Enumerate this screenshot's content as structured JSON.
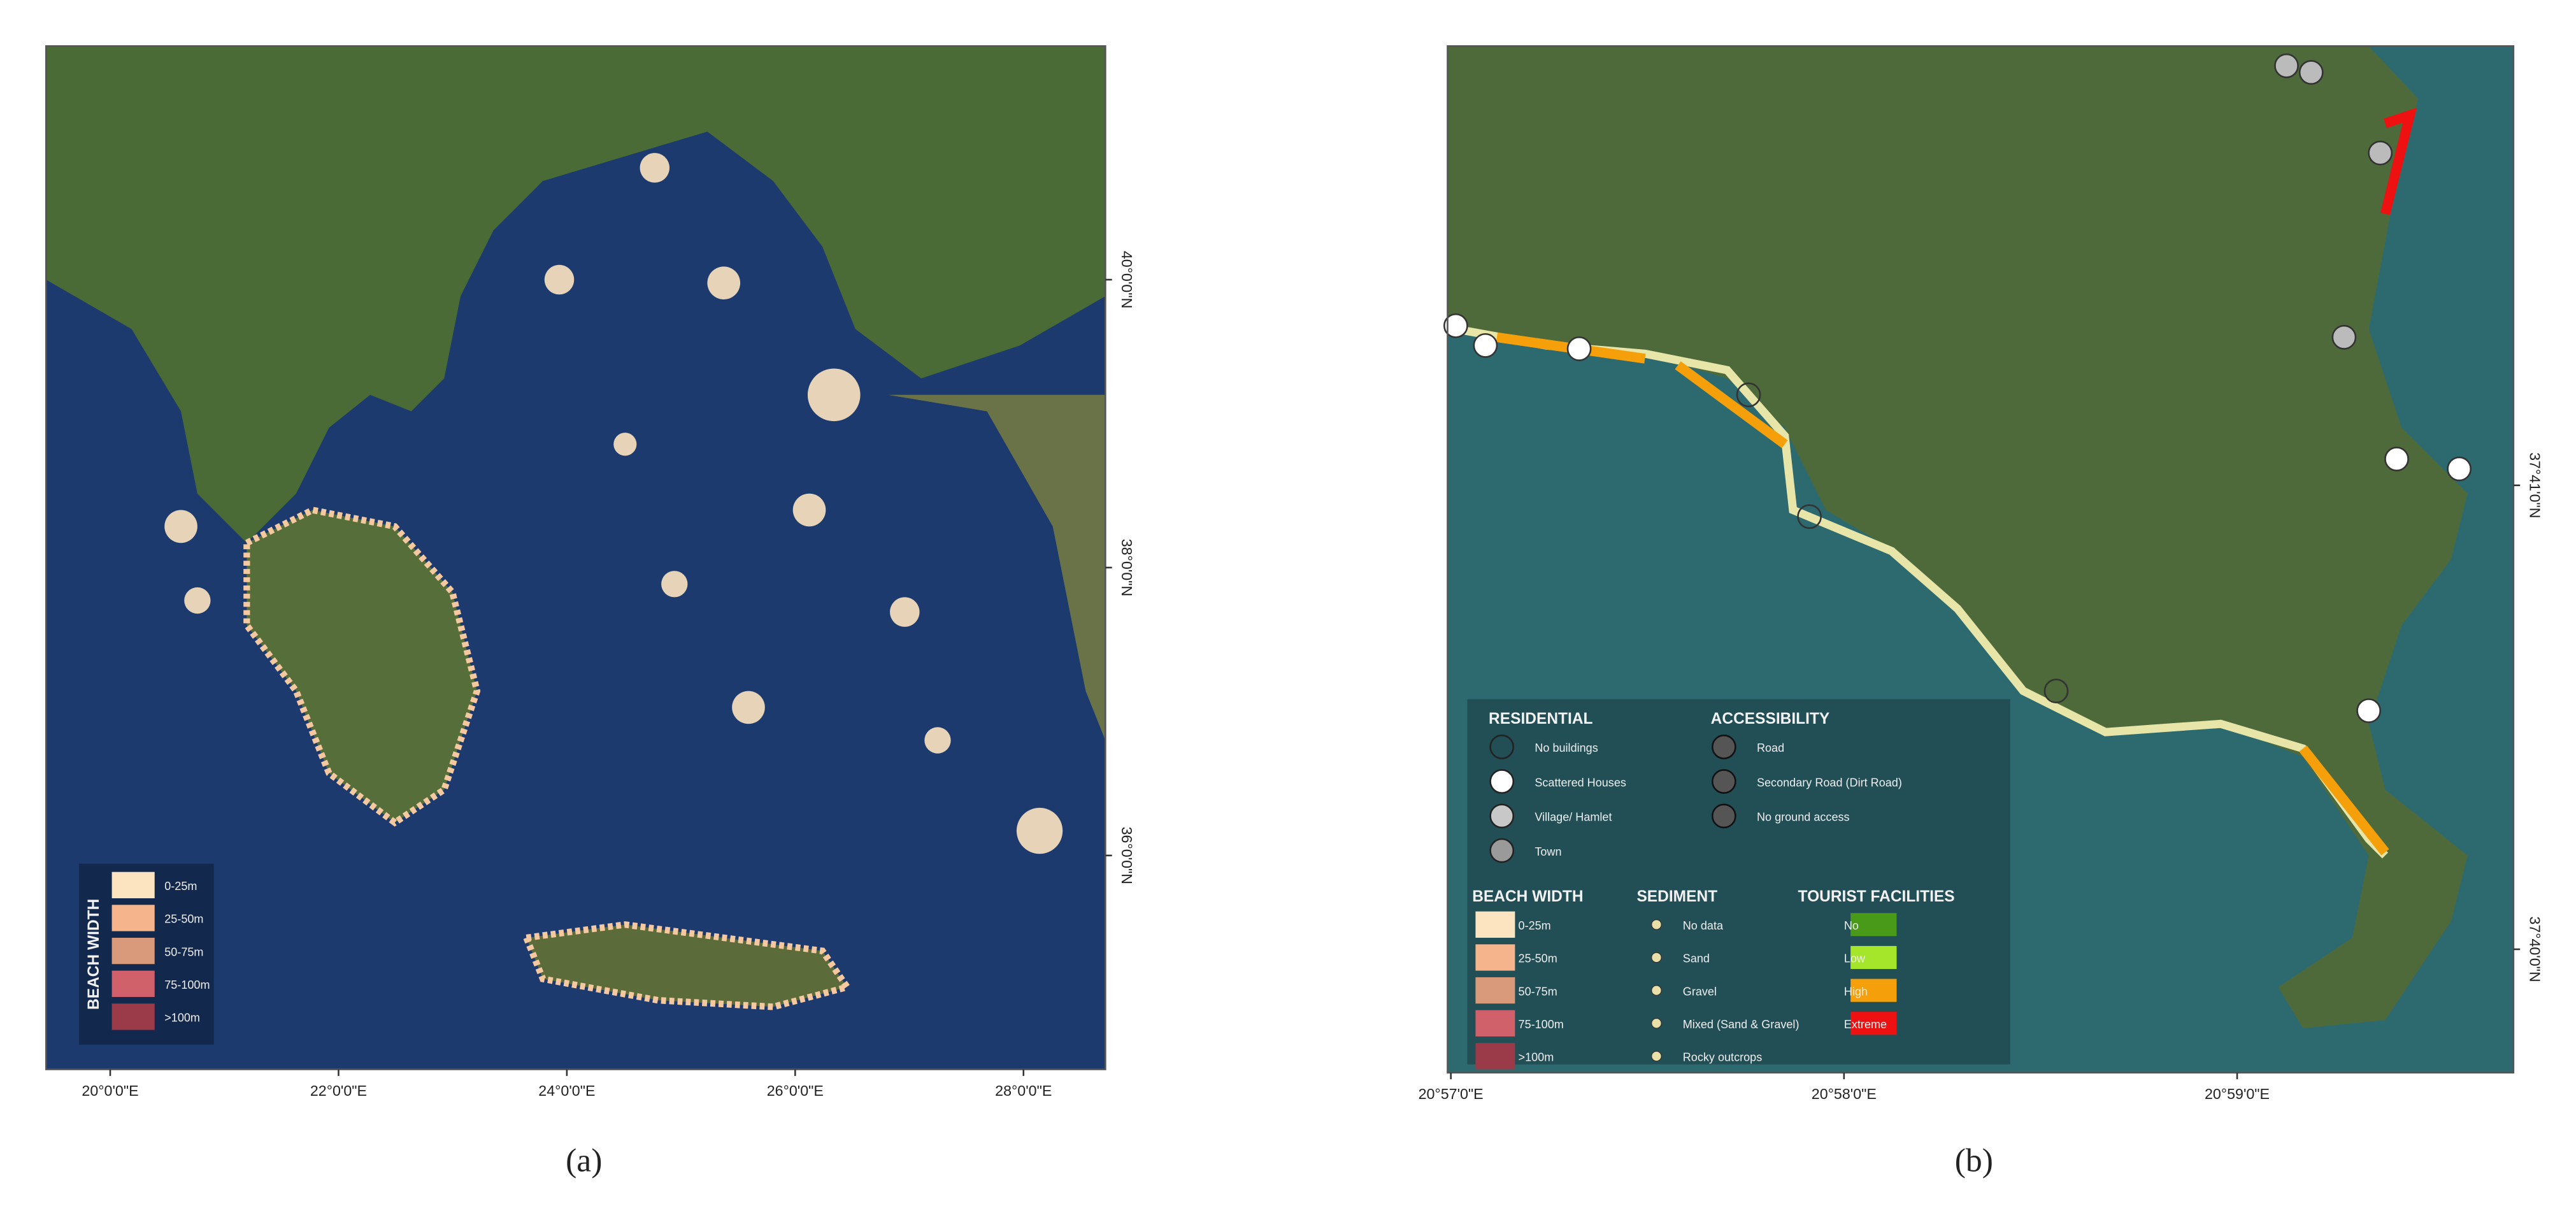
{
  "panels": [
    {
      "caption": "(a)",
      "x_labels": [
        "20°0'0\"E",
        "22°0'0\"E",
        "24°0'0\"E",
        "26°0'0\"E",
        "28°0'0\"E"
      ],
      "y_labels": [
        "40°0'0\"N",
        "38°0'0\"N",
        "36°0'0\"N"
      ],
      "legend": {
        "title": "BEACH WIDTH",
        "items": [
          {
            "label": "0-25m",
            "color": "#fde4c0"
          },
          {
            "label": "25-50m",
            "color": "#f6b48c"
          },
          {
            "label": "50-75m",
            "color": "#d99a7c"
          },
          {
            "label": "75-100m",
            "color": "#d0606a"
          },
          {
            "label": ">100m",
            "color": "#9b3a48"
          }
        ]
      }
    },
    {
      "caption": "(b)",
      "x_labels": [
        "20°57'0\"E",
        "20°58'0\"E",
        "20°59'0\"E"
      ],
      "y_labels": [
        "37°41'0\"N",
        "37°40'0\"N"
      ],
      "legend": {
        "residential": {
          "title": "RESIDENTIAL",
          "items": [
            {
              "label": "No buildings",
              "color": "none"
            },
            {
              "label": "Scattered Houses",
              "color": "#ffffff"
            },
            {
              "label": "Village/ Hamlet",
              "color": "#c8c8c8"
            },
            {
              "label": "Town",
              "color": "#9a9a9a"
            }
          ]
        },
        "accessibility": {
          "title": "ACCESSIBILITY",
          "items": [
            {
              "label": "Road"
            },
            {
              "label": "Secondary Road (Dirt Road)"
            },
            {
              "label": "No ground access"
            }
          ]
        },
        "beach_width": {
          "title": "BEACH WIDTH",
          "items": [
            {
              "label": "0-25m",
              "color": "#fde4c0"
            },
            {
              "label": "25-50m",
              "color": "#f6b48c"
            },
            {
              "label": "50-75m",
              "color": "#d99a7c"
            },
            {
              "label": "75-100m",
              "color": "#d0606a"
            },
            {
              "label": ">100m",
              "color": "#9b3a48"
            }
          ]
        },
        "sediment": {
          "title": "SEDIMENT",
          "items": [
            {
              "label": "No data"
            },
            {
              "label": "Sand"
            },
            {
              "label": "Gravel"
            },
            {
              "label": "Mixed (Sand & Gravel)"
            },
            {
              "label": "Rocky outcrops"
            }
          ]
        },
        "tourist": {
          "title": "TOURIST FACILITIES",
          "items": [
            {
              "label": "No",
              "color": "#4a9a1a"
            },
            {
              "label": "Low",
              "color": "#a6e62a"
            },
            {
              "label": "High",
              "color": "#f5a00a"
            },
            {
              "label": "Extreme",
              "color": "#ee1111"
            }
          ]
        }
      }
    }
  ]
}
